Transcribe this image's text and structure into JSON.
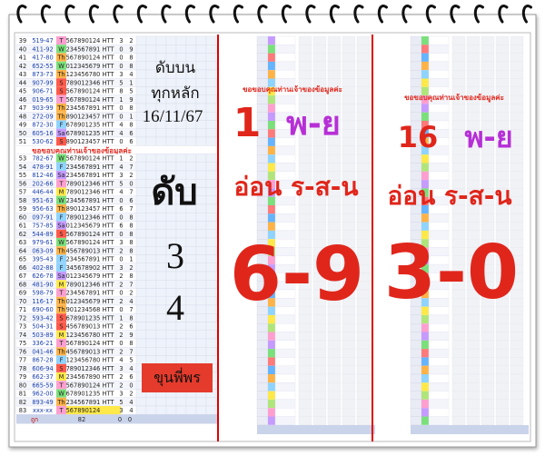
{
  "left": {
    "rows": [
      [
        "39",
        "519-47",
        "T",
        "567890124",
        "HTT",
        "3",
        "2"
      ],
      [
        "40",
        "411-92",
        "W",
        "234567891",
        "HTT",
        "0",
        "9"
      ],
      [
        "41",
        "417-80",
        "Th",
        "567890124",
        "HTT",
        "0",
        "8"
      ],
      [
        "42",
        "652-55",
        "W",
        "012345679",
        "HTT",
        "0",
        "8"
      ],
      [
        "43",
        "873-73",
        "Th",
        "123456780",
        "HTT",
        "3",
        "4"
      ],
      [
        "44",
        "907-99",
        "S",
        "789012346",
        "HTT",
        "5",
        "1"
      ],
      [
        "45",
        "906-71",
        "S",
        "567890124",
        "HTT",
        "8",
        "5"
      ],
      [
        "46",
        "019-65",
        "T",
        "567890124",
        "HTT",
        "1",
        "9"
      ],
      [
        "47",
        "903-99",
        "Th",
        "234567891",
        "HTT",
        "0",
        "8"
      ],
      [
        "48",
        "272-09",
        "Th",
        "890123457",
        "HTT",
        "0",
        "1"
      ],
      [
        "49",
        "872-30",
        "F",
        "678901235",
        "HTT",
        "4",
        "8"
      ],
      [
        "50",
        "605-16",
        "Sa",
        "678901235",
        "HTT",
        "4",
        "6"
      ],
      [
        "51",
        "530-62",
        "S",
        "890123457",
        "HTT",
        "0",
        "6"
      ],
      [
        "53",
        "782-67",
        "W",
        "567890124",
        "HTT",
        "1",
        "2"
      ],
      [
        "54",
        "478-91",
        "F",
        "234567891",
        "HTT",
        "4",
        "7"
      ],
      [
        "55",
        "812-46",
        "Sa",
        "234567891",
        "HTT",
        "3",
        "2"
      ],
      [
        "56",
        "202-66",
        "T",
        "789012346",
        "HTT",
        "5",
        "0"
      ],
      [
        "57",
        "446-44",
        "M",
        "789012346",
        "HTT",
        "4",
        "7"
      ],
      [
        "58",
        "951-63",
        "W",
        "234567891",
        "HTT",
        "0",
        "6"
      ],
      [
        "59",
        "956-63",
        "Th",
        "890123457",
        "HTT",
        "6",
        "7"
      ],
      [
        "60",
        "097-91",
        "F",
        "789012346",
        "HTT",
        "0",
        "8"
      ],
      [
        "61",
        "757-85",
        "Sa",
        "012345679",
        "HTT",
        "6",
        "8"
      ],
      [
        "62",
        "544-89",
        "S",
        "567890124",
        "HTT",
        "0",
        "8"
      ],
      [
        "63",
        "979-61",
        "W",
        "567890124",
        "HTT",
        "3",
        "8"
      ],
      [
        "64",
        "063-09",
        "Th",
        "456789013",
        "HTT",
        "2",
        "8"
      ],
      [
        "65",
        "395-43",
        "F",
        "234567891",
        "HTT",
        "0",
        "1"
      ],
      [
        "66",
        "402-88",
        "F",
        "345678902",
        "HTT",
        "3",
        "2"
      ],
      [
        "67",
        "626-78",
        "Sa",
        "012345679",
        "HTT",
        "2",
        "8"
      ],
      [
        "68",
        "481-90",
        "M",
        "789012346",
        "HTT",
        "2",
        "7"
      ],
      [
        "69",
        "598-79",
        "T",
        "234567891",
        "HTT",
        "0",
        "2"
      ],
      [
        "70",
        "116-17",
        "Th",
        "012345679",
        "HTT",
        "2",
        "4"
      ],
      [
        "71",
        "690-60",
        "Th",
        "901234568",
        "HTT",
        "0",
        "7"
      ],
      [
        "72",
        "593-42",
        "S",
        "678901235",
        "HTT",
        "1",
        "8"
      ],
      [
        "73",
        "504-31",
        "S",
        "456789013",
        "HTT",
        "2",
        "6"
      ],
      [
        "74",
        "503-89",
        "M",
        "123456780",
        "HTT",
        "2",
        "9"
      ],
      [
        "75",
        "336-21",
        "T",
        "567890124",
        "HTT",
        "0",
        "8"
      ],
      [
        "76",
        "041-46",
        "Th",
        "456789013",
        "HTT",
        "2",
        "7"
      ],
      [
        "77",
        "867-28",
        "F",
        "123456780",
        "HTT",
        "4",
        "5"
      ],
      [
        "78",
        "606-94",
        "S",
        "789012346",
        "HTT",
        "3",
        "4"
      ],
      [
        "79",
        "662-37",
        "M",
        "234567890",
        "HTT",
        "2",
        "6"
      ],
      [
        "80",
        "665-59",
        "T",
        "567890124",
        "HTT",
        "2",
        "0"
      ],
      [
        "81",
        "962-00",
        "W",
        "678901235",
        "HTT",
        "3",
        "2"
      ],
      [
        "82",
        "893-49",
        "Th",
        "234567891",
        "HTT",
        "5",
        "4"
      ],
      [
        "83",
        "xxx-xx",
        "T",
        "567890124",
        "3",
        "4"
      ]
    ],
    "slogan": "ขอขอบคุณท่านเจ้าของข้อมูลค่ะ",
    "footer": [
      "ถูก",
      "82",
      "0",
      "0"
    ],
    "title_lines": [
      "ดับบน",
      "ทุกหลัก",
      "16/11/67"
    ],
    "big": [
      "ดับ",
      "3",
      "4"
    ],
    "badge": "ขุนพี่พร"
  },
  "middle": {
    "thanks": "ขอขอบคุณท่านเจ้าของข้อมูลค่ะ",
    "day_number": "1",
    "month": "พ-ย",
    "subtitle": "อ่อน ร-ส-น",
    "result": "6-9"
  },
  "right": {
    "thanks": "ขอขอบคุณท่านเจ้าของข้อมูลค่ะ",
    "day_number": "16",
    "month": "พ-ย",
    "subtitle": "อ่อน ร-ส-น",
    "result": "3-0"
  }
}
